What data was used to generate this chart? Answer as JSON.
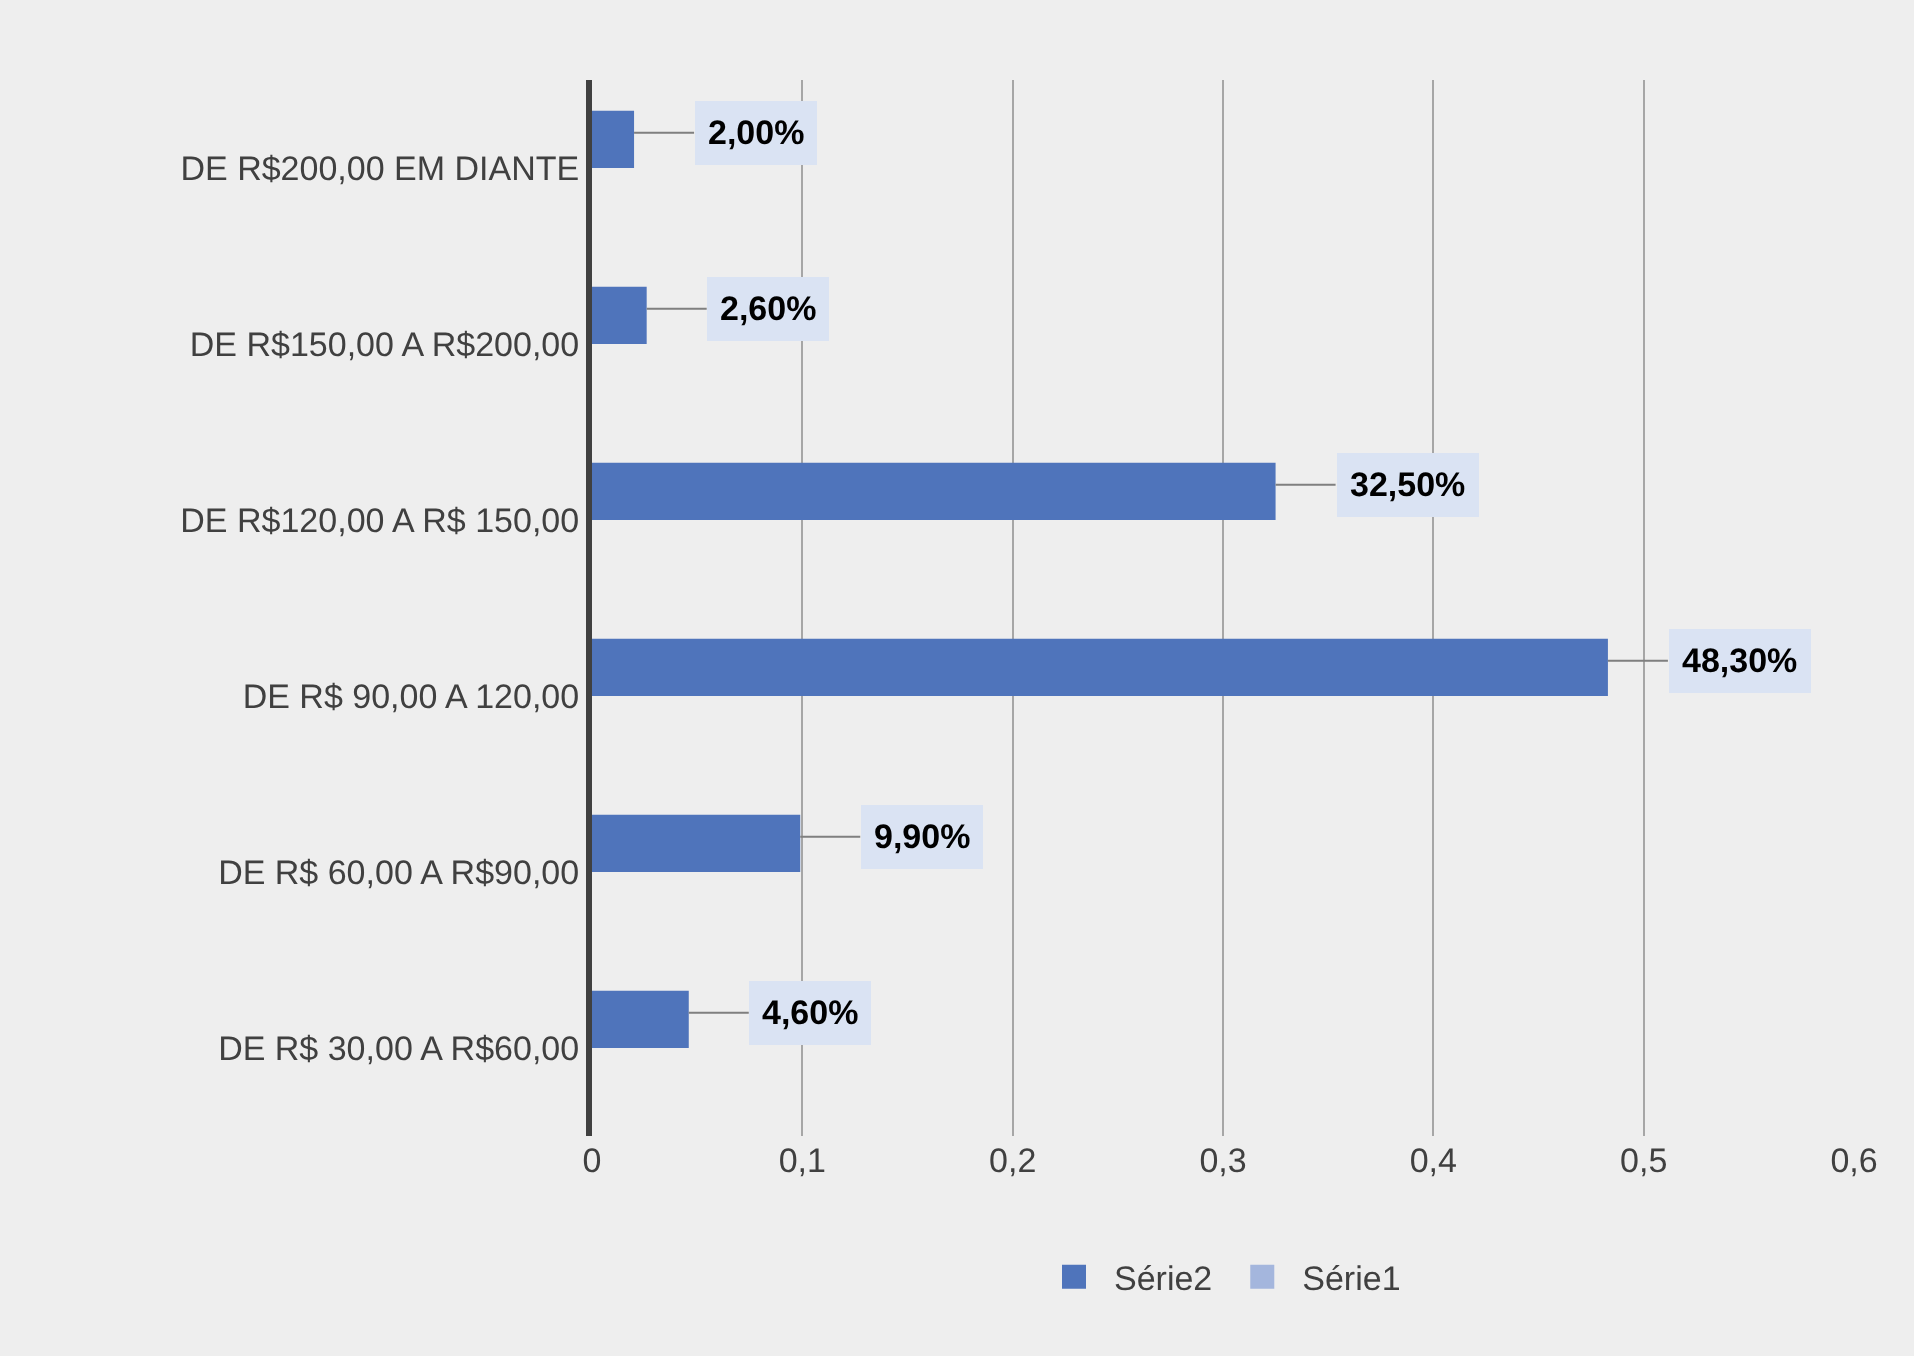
{
  "chart_data": {
    "type": "bar",
    "orientation": "horizontal",
    "categories": [
      "DE R$200,00 EM DIANTE",
      "DE R$150,00 A R$200,00",
      "DE R$120,00 A R$ 150,00",
      "DE R$ 90,00 A 120,00",
      "DE R$ 60,00 A R$90,00",
      "DE R$ 30,00 A R$60,00"
    ],
    "series": [
      {
        "name": "Série2",
        "color": "#4f74bb",
        "values": [
          0.02,
          0.026,
          0.325,
          0.483,
          0.099,
          0.046
        ],
        "value_labels": [
          "2,00%",
          "2,60%",
          "32,50%",
          "48,30%",
          "9,90%",
          "4,60%"
        ]
      },
      {
        "name": "Série1",
        "color": "#a4b6dd",
        "values": [
          null,
          null,
          null,
          null,
          null,
          null
        ]
      }
    ],
    "xlim": [
      0,
      0.6
    ],
    "xticks": [
      0,
      {
        "value": 0.1,
        "label": "0,1"
      },
      {
        "value": 0.2,
        "label": "0,2"
      },
      {
        "value": 0.3,
        "label": "0,3"
      },
      {
        "value": 0.4,
        "label": "0,4"
      },
      {
        "value": 0.5,
        "label": "0,5"
      },
      {
        "value": 0.6,
        "label": "0,6"
      }
    ],
    "grid": "x",
    "legend": "bottom"
  }
}
